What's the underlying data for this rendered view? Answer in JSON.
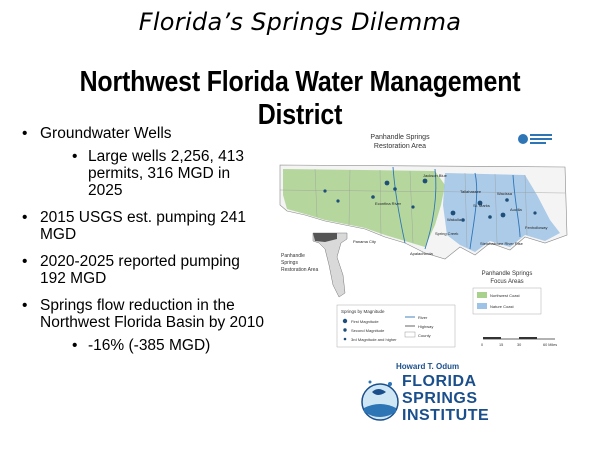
{
  "title": "Florida’s Springs Dilemma",
  "heading": "Northwest Florida Water Management District",
  "bullets": {
    "b1": "Groundwater Wells",
    "b1_sub": "Large wells 2,256, 413 permits, 316 MGD in 2025",
    "b2": "2015 USGS est. pumping 241 MGD",
    "b3": "2020-2025 reported pumping 192 MGD",
    "b4": "Springs flow reduction in the Northwest Florida Basin by 2010",
    "b4_sub": "-16% (-385 MGD)"
  },
  "map": {
    "title_l1": "Panhandle Springs",
    "title_l2": "Restoration Area",
    "inset_l1": "Panhandle",
    "inset_l2": "Springs",
    "inset_l3": "Restoration Area",
    "cities": {
      "panama_city": "Panama City",
      "apalachicola": "Apalachicola",
      "tallahassee": "Tallahassee",
      "st_marks": "St. Marks",
      "wakulla": "Wakulla",
      "wacissa": "Wacissa",
      "aucilla": "Aucilla",
      "spring_creek": "Spring Creek",
      "jackson_blue": "Jackson Blue",
      "econfina": "Econfina River",
      "steinhatchee": "Steinhatchee River Rise",
      "fenholloway": "Fenholloway"
    },
    "focus_title_l1": "Panhandle Springs",
    "focus_title_l2": "Focus Areas",
    "focus_items": [
      "Northwest Coast",
      "Nature Coast"
    ],
    "legend_title": "Springs by Magnitude",
    "legend_items": [
      "First Magnitude",
      "Second Magnitude",
      "3rd Magnitude and higher"
    ],
    "legend_lines": [
      "River",
      "Highway",
      "County"
    ],
    "scale_labels": [
      "0",
      "15",
      "30",
      "60 Miles"
    ],
    "colors": {
      "green": "#a9d18e",
      "blue": "#9dc3e6",
      "dark_green": "#4e8a3a",
      "spring": "#1f4e79"
    }
  },
  "logo": {
    "name": "Howard T. Odum",
    "line1": "FLORIDA",
    "line2": "SPRINGS",
    "line3": "INSTITUTE"
  }
}
